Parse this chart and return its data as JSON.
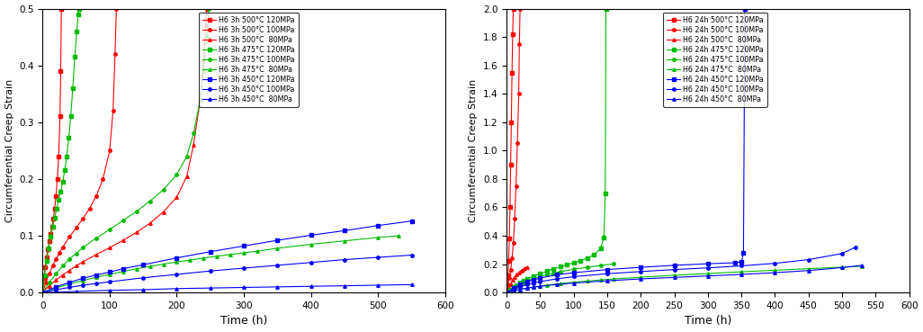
{
  "left": {
    "xlabel": "Time (h)",
    "ylabel": "Circumferential Creep Strain",
    "xlim": [
      0,
      600
    ],
    "ylim": [
      0,
      0.5
    ],
    "yticks": [
      0.0,
      0.1,
      0.2,
      0.3,
      0.4,
      0.5
    ],
    "xticks": [
      0,
      100,
      200,
      300,
      400,
      500,
      600
    ],
    "series": [
      {
        "label": "H6 3h 500°C 120MPa",
        "color": "#FF0000",
        "marker": "s",
        "rupture_t": 28,
        "t0": [
          0,
          2,
          4,
          6,
          8,
          10,
          12,
          14,
          16,
          18,
          20,
          22,
          24,
          26,
          27,
          28
        ],
        "y0": [
          0.0,
          0.025,
          0.045,
          0.062,
          0.077,
          0.09,
          0.103,
          0.116,
          0.13,
          0.148,
          0.17,
          0.2,
          0.24,
          0.31,
          0.39,
          0.5
        ]
      },
      {
        "label": "H6 3h 500°C 100MPa",
        "color": "#FF0000",
        "marker": "o",
        "rupture_t": 110,
        "t0": [
          0,
          5,
          10,
          15,
          20,
          25,
          30,
          40,
          50,
          60,
          70,
          80,
          90,
          100,
          105,
          108,
          110
        ],
        "y0": [
          0.0,
          0.018,
          0.033,
          0.047,
          0.059,
          0.07,
          0.08,
          0.098,
          0.114,
          0.13,
          0.148,
          0.17,
          0.2,
          0.25,
          0.32,
          0.42,
          0.5
        ]
      },
      {
        "label": "H6 3h 500°C  80MPa",
        "color": "#FF0000",
        "marker": "^",
        "rupture_t": 245,
        "t0": [
          0,
          10,
          20,
          30,
          40,
          50,
          60,
          80,
          100,
          120,
          140,
          160,
          180,
          200,
          215,
          225,
          235,
          240,
          243,
          245
        ],
        "y0": [
          0.0,
          0.012,
          0.022,
          0.031,
          0.039,
          0.047,
          0.054,
          0.067,
          0.079,
          0.092,
          0.106,
          0.122,
          0.142,
          0.168,
          0.205,
          0.26,
          0.34,
          0.41,
          0.47,
          0.5
        ]
      },
      {
        "label": "H6 3h 475°C 120MPa",
        "color": "#00BB00",
        "marker": "s",
        "rupture_t": 55,
        "t0": [
          0,
          3,
          6,
          9,
          12,
          15,
          18,
          21,
          24,
          27,
          30,
          33,
          36,
          39,
          42,
          45,
          48,
          51,
          53,
          55
        ],
        "y0": [
          0.0,
          0.03,
          0.055,
          0.078,
          0.098,
          0.116,
          0.132,
          0.148,
          0.163,
          0.178,
          0.195,
          0.215,
          0.24,
          0.272,
          0.31,
          0.36,
          0.415,
          0.46,
          0.49,
          0.5
        ]
      },
      {
        "label": "H6 3h 475°C 100MPa",
        "color": "#00BB00",
        "marker": "o",
        "rupture_t": 248,
        "t0": [
          0,
          10,
          20,
          30,
          40,
          50,
          60,
          80,
          100,
          120,
          140,
          160,
          180,
          200,
          215,
          225,
          235,
          240,
          245,
          248
        ],
        "y0": [
          0.0,
          0.018,
          0.033,
          0.047,
          0.059,
          0.069,
          0.079,
          0.096,
          0.111,
          0.127,
          0.143,
          0.161,
          0.181,
          0.208,
          0.24,
          0.28,
          0.34,
          0.39,
          0.45,
          0.5
        ]
      },
      {
        "label": "H6 3h 475°C  80MPa",
        "color": "#00BB00",
        "marker": "^",
        "rupture_t": null,
        "t0": [
          0,
          20,
          40,
          60,
          80,
          100,
          120,
          140,
          160,
          180,
          200,
          220,
          240,
          260,
          280,
          300,
          320,
          350,
          400,
          450,
          500,
          530
        ],
        "y0": [
          0.0,
          0.008,
          0.015,
          0.021,
          0.027,
          0.032,
          0.037,
          0.042,
          0.046,
          0.05,
          0.054,
          0.057,
          0.061,
          0.064,
          0.067,
          0.07,
          0.073,
          0.078,
          0.085,
          0.091,
          0.097,
          0.1
        ]
      },
      {
        "label": "H6 3h 450°C 120MPa",
        "color": "#0000FF",
        "marker": "s",
        "rupture_t": null,
        "t0": [
          0,
          20,
          40,
          60,
          80,
          100,
          120,
          150,
          200,
          250,
          300,
          350,
          400,
          450,
          500,
          550
        ],
        "y0": [
          0.0,
          0.01,
          0.018,
          0.025,
          0.031,
          0.036,
          0.042,
          0.049,
          0.061,
          0.072,
          0.082,
          0.092,
          0.101,
          0.109,
          0.118,
          0.126
        ]
      },
      {
        "label": "H6 3h 450°C 100MPa",
        "color": "#0000FF",
        "marker": "o",
        "rupture_t": null,
        "t0": [
          0,
          20,
          40,
          60,
          80,
          100,
          150,
          200,
          250,
          300,
          350,
          400,
          450,
          500,
          550
        ],
        "y0": [
          0.0,
          0.005,
          0.009,
          0.013,
          0.016,
          0.019,
          0.026,
          0.032,
          0.038,
          0.043,
          0.048,
          0.053,
          0.058,
          0.062,
          0.066
        ]
      },
      {
        "label": "H6 3h 450°C  80MPa",
        "color": "#0000FF",
        "marker": "^",
        "rupture_t": null,
        "t0": [
          0,
          50,
          100,
          150,
          200,
          250,
          300,
          350,
          400,
          450,
          500,
          550
        ],
        "y0": [
          0.0,
          0.002,
          0.004,
          0.005,
          0.007,
          0.008,
          0.009,
          0.01,
          0.011,
          0.012,
          0.013,
          0.014
        ]
      }
    ]
  },
  "right": {
    "xlabel": "Time (h)",
    "ylabel": "Circumferential Creep Strain",
    "xlim": [
      0,
      600
    ],
    "ylim": [
      0,
      2.0
    ],
    "yticks": [
      0.0,
      0.2,
      0.4,
      0.6,
      0.8,
      1.0,
      1.2,
      1.4,
      1.6,
      1.8,
      2.0
    ],
    "xticks": [
      0,
      50,
      100,
      150,
      200,
      250,
      300,
      350,
      400,
      450,
      500,
      550,
      600
    ],
    "series": [
      {
        "label": "H6 24h 500°C 120MPa",
        "color": "#FF0000",
        "marker": "s",
        "rupture_t": 10,
        "t0": [
          0,
          1,
          2,
          3,
          4,
          5,
          6,
          7,
          8,
          9,
          10
        ],
        "y0": [
          0.0,
          0.05,
          0.12,
          0.22,
          0.38,
          0.6,
          0.9,
          1.2,
          1.55,
          1.82,
          2.0
        ]
      },
      {
        "label": "H6 24h 500°C 100MPa",
        "color": "#FF0000",
        "marker": "o",
        "rupture_t": 20,
        "t0": [
          0,
          2,
          4,
          6,
          8,
          10,
          12,
          14,
          16,
          18,
          19,
          20
        ],
        "y0": [
          0.0,
          0.05,
          0.1,
          0.16,
          0.24,
          0.35,
          0.52,
          0.75,
          1.05,
          1.4,
          1.75,
          2.0
        ]
      },
      {
        "label": "H6 24h 500°C  80MPa",
        "color": "#FF0000",
        "marker": "^",
        "rupture_t": null,
        "t0": [
          0,
          3,
          6,
          9,
          12,
          15,
          18,
          21,
          24,
          27,
          30
        ],
        "y0": [
          0.0,
          0.03,
          0.06,
          0.09,
          0.11,
          0.13,
          0.14,
          0.15,
          0.16,
          0.17,
          0.18
        ]
      },
      {
        "label": "H6 24h 475°C 120MPa",
        "color": "#00BB00",
        "marker": "s",
        "rupture_t": 148,
        "t0": [
          0,
          5,
          10,
          15,
          20,
          25,
          30,
          40,
          50,
          60,
          70,
          80,
          90,
          100,
          110,
          120,
          130,
          140,
          145,
          147,
          148
        ],
        "y0": [
          0.0,
          0.02,
          0.038,
          0.054,
          0.068,
          0.082,
          0.094,
          0.115,
          0.133,
          0.15,
          0.166,
          0.182,
          0.196,
          0.21,
          0.225,
          0.242,
          0.265,
          0.31,
          0.39,
          0.7,
          2.0
        ]
      },
      {
        "label": "H6 24h 475°C 100MPa",
        "color": "#00BB00",
        "marker": "o",
        "rupture_t": null,
        "t0": [
          0,
          5,
          10,
          15,
          20,
          25,
          30,
          40,
          50,
          60,
          70,
          80,
          100,
          120,
          140,
          160
        ],
        "y0": [
          0.0,
          0.018,
          0.034,
          0.048,
          0.06,
          0.071,
          0.081,
          0.098,
          0.113,
          0.126,
          0.137,
          0.147,
          0.164,
          0.178,
          0.191,
          0.202
        ]
      },
      {
        "label": "H6 24h 475°C  80MPa",
        "color": "#00BB00",
        "marker": "^",
        "rupture_t": null,
        "t0": [
          0,
          10,
          20,
          30,
          40,
          50,
          60,
          80,
          100,
          120,
          140,
          160,
          200,
          250,
          300,
          350,
          400,
          450,
          500,
          530
        ],
        "y0": [
          0.0,
          0.012,
          0.022,
          0.031,
          0.039,
          0.046,
          0.052,
          0.063,
          0.073,
          0.081,
          0.089,
          0.096,
          0.108,
          0.122,
          0.134,
          0.146,
          0.157,
          0.168,
          0.179,
          0.185
        ]
      },
      {
        "label": "H6 24h 450°C 120MPa",
        "color": "#0000FF",
        "marker": "s",
        "rupture_t": 355,
        "t0": [
          0,
          10,
          20,
          30,
          40,
          50,
          75,
          100,
          150,
          200,
          250,
          300,
          340,
          350,
          353,
          355
        ],
        "y0": [
          0.0,
          0.03,
          0.055,
          0.075,
          0.09,
          0.103,
          0.125,
          0.14,
          0.162,
          0.178,
          0.192,
          0.203,
          0.21,
          0.215,
          0.28,
          2.0
        ]
      },
      {
        "label": "H6 24h 450°C 100MPa",
        "color": "#0000FF",
        "marker": "o",
        "rupture_t": null,
        "t0": [
          0,
          10,
          20,
          30,
          40,
          50,
          75,
          100,
          150,
          200,
          250,
          300,
          350,
          400,
          450,
          500,
          520
        ],
        "y0": [
          0.0,
          0.022,
          0.04,
          0.055,
          0.067,
          0.077,
          0.097,
          0.112,
          0.133,
          0.148,
          0.162,
          0.174,
          0.188,
          0.206,
          0.232,
          0.275,
          0.32
        ]
      },
      {
        "label": "H6 24h 450°C  80MPa",
        "color": "#0000FF",
        "marker": "^",
        "rupture_t": null,
        "t0": [
          0,
          10,
          20,
          30,
          40,
          50,
          75,
          100,
          150,
          200,
          250,
          300,
          350,
          400,
          450,
          500,
          530
        ],
        "y0": [
          0.0,
          0.012,
          0.022,
          0.031,
          0.038,
          0.044,
          0.057,
          0.067,
          0.083,
          0.096,
          0.107,
          0.117,
          0.128,
          0.14,
          0.155,
          0.176,
          0.192
        ]
      }
    ]
  }
}
